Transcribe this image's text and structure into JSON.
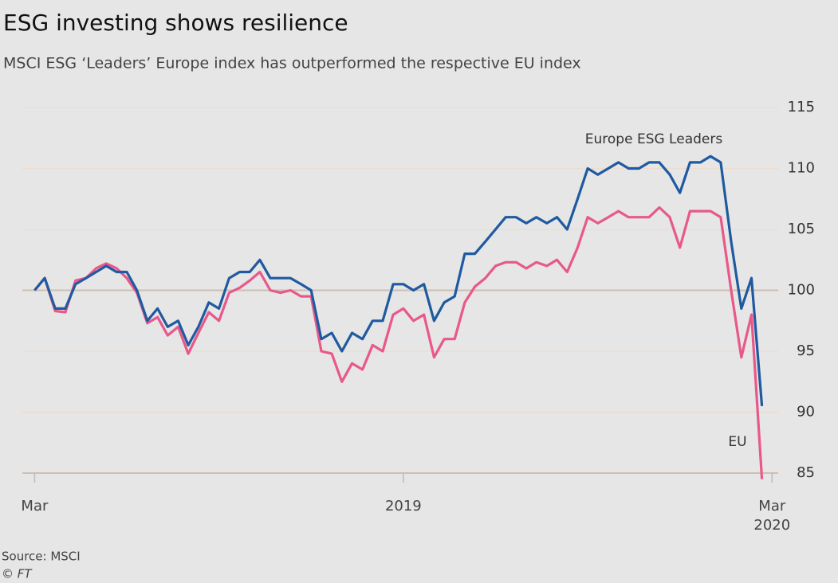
{
  "chart_data": {
    "type": "line",
    "title": "ESG investing shows resilience",
    "subtitle": "MSCI ESG ‘Leaders’ Europe index has outperformed the respective EU index",
    "source": "Source: MSCI",
    "credit": "© FT",
    "x": [
      0,
      0.33,
      0.67,
      1,
      1.33,
      1.67,
      2,
      2.33,
      2.67,
      3,
      3.33,
      3.67,
      4,
      4.33,
      4.67,
      5,
      5.33,
      5.67,
      6,
      6.33,
      6.67,
      7,
      7.33,
      7.67,
      8,
      8.33,
      8.67,
      9,
      9.33,
      9.67,
      10,
      10.33,
      10.67,
      11,
      11.33,
      11.67,
      12,
      12.33,
      12.67,
      13,
      13.33,
      13.67,
      14,
      14.33,
      14.67,
      15,
      15.33,
      15.67,
      16,
      16.33,
      16.67,
      17,
      17.33,
      17.67,
      18,
      18.33,
      18.67,
      19,
      19.33,
      19.67,
      20,
      20.33,
      20.67,
      21,
      21.33,
      21.67,
      22,
      22.33,
      22.67,
      23,
      23.33,
      23.67
    ],
    "series": [
      {
        "name": "Europe ESG Leaders",
        "color": "#1f5aa0",
        "values": [
          100,
          101,
          98.5,
          98.5,
          100.5,
          101,
          101.5,
          102,
          101.5,
          101.5,
          100,
          97.5,
          98.5,
          97,
          97.5,
          95.5,
          97,
          99,
          98.5,
          101,
          101.5,
          101.5,
          102.5,
          101,
          101,
          101,
          100.5,
          100,
          96,
          96.5,
          95,
          96.5,
          96,
          97.5,
          97.5,
          100.5,
          100.5,
          100,
          100.5,
          97.5,
          99,
          99.5,
          103,
          103,
          104,
          105,
          106,
          106,
          105.5,
          106,
          105.5,
          106,
          105,
          107.5,
          110,
          109.5,
          110,
          110.5,
          110,
          110,
          110.5,
          110.5,
          109.5,
          108,
          110.5,
          110.5,
          111,
          110.5,
          104,
          98.5,
          101,
          90.5
        ]
      },
      {
        "name": "EU",
        "color": "#e8588a",
        "values": [
          100,
          101,
          98.3,
          98.2,
          100.8,
          101,
          101.8,
          102.2,
          101.8,
          101,
          99.8,
          97.3,
          97.8,
          96.3,
          97,
          94.8,
          96.5,
          98.2,
          97.5,
          99.8,
          100.2,
          100.8,
          101.5,
          100,
          99.8,
          100,
          99.5,
          99.5,
          95,
          94.8,
          92.5,
          94,
          93.5,
          95.5,
          95,
          98,
          98.5,
          97.5,
          98,
          94.5,
          96,
          96,
          99,
          100.3,
          101,
          102,
          102.3,
          102.3,
          101.8,
          102.3,
          102,
          102.5,
          101.5,
          103.5,
          106,
          105.5,
          106,
          106.5,
          106,
          106,
          106,
          106.8,
          106,
          103.5,
          106.5,
          106.5,
          106.5,
          106,
          100,
          94.5,
          98,
          84.5
        ]
      }
    ],
    "xlim": [
      -0.4,
      24.2
    ],
    "xticks": [
      {
        "value": 0,
        "label": "Mar"
      },
      {
        "value": 12,
        "label": "2019"
      },
      {
        "value": 24,
        "label": "Mar\n2020"
      }
    ],
    "ylim": [
      85,
      115
    ],
    "yticks": [
      85,
      90,
      95,
      100,
      105,
      110,
      115
    ],
    "grid": true
  }
}
